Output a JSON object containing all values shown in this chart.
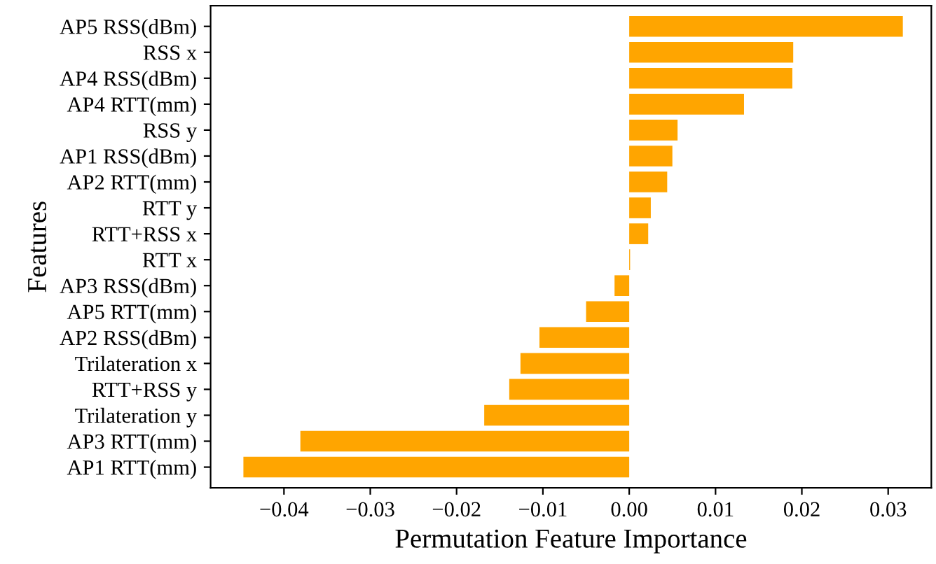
{
  "chart_data": {
    "type": "bar",
    "orientation": "horizontal",
    "xlabel": "Permutation Feature Importance",
    "ylabel": "Features",
    "categories": [
      "AP5 RSS(dBm)",
      "RSS x",
      "AP4 RSS(dBm)",
      "AP4 RTT(mm)",
      "RSS y",
      "AP1 RSS(dBm)",
      "AP2 RTT(mm)",
      "RTT y",
      "RTT+RSS x",
      "RTT x",
      "AP3 RSS(dBm)",
      "AP5 RTT(mm)",
      "AP2 RSS(dBm)",
      "Trilateration x",
      "RTT+RSS y",
      "Trilateration y",
      "AP3 RTT(mm)",
      "AP1 RTT(mm)"
    ],
    "values": [
      0.0317,
      0.019,
      0.0189,
      0.0133,
      0.0056,
      0.005,
      0.0044,
      0.0025,
      0.0022,
      0.0001,
      -0.0017,
      -0.005,
      -0.0104,
      -0.0126,
      -0.0139,
      -0.0168,
      -0.0381,
      -0.0447
    ],
    "color": "#ffa500",
    "xlim": [
      -0.0485,
      0.035
    ],
    "xticks": [
      {
        "value": -0.04,
        "label": "−0.04"
      },
      {
        "value": -0.03,
        "label": "−0.03"
      },
      {
        "value": -0.02,
        "label": "−0.02"
      },
      {
        "value": -0.01,
        "label": "−0.01"
      },
      {
        "value": 0,
        "label": "0.00"
      },
      {
        "value": 0.01,
        "label": "0.01"
      },
      {
        "value": 0.02,
        "label": "0.02"
      },
      {
        "value": 0.03,
        "label": "0.03"
      }
    ],
    "grid": false
  }
}
